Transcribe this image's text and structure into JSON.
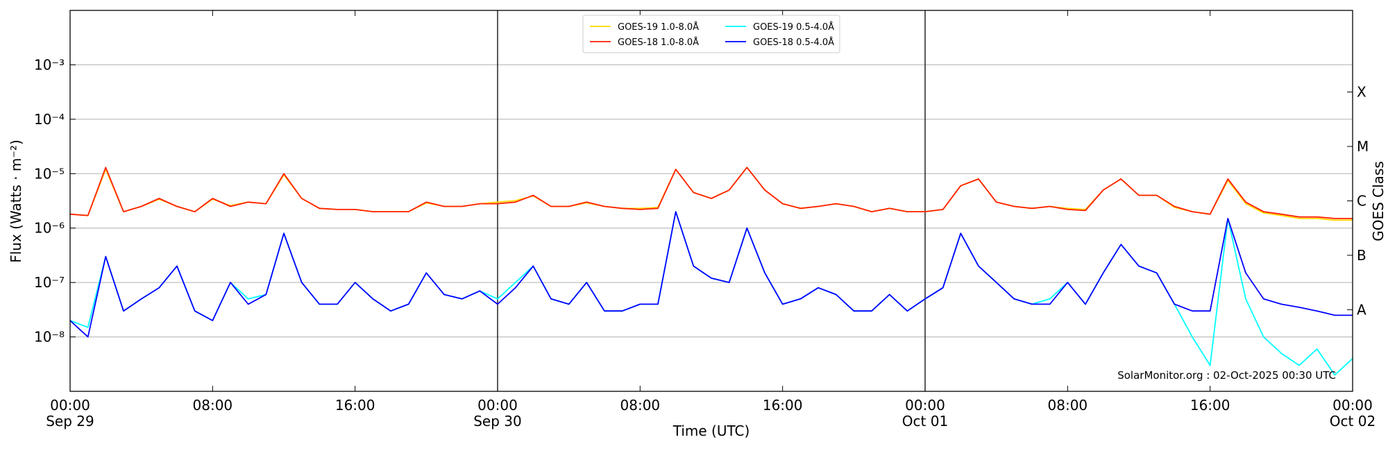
{
  "chart_data": {
    "type": "line",
    "x_label": "Time (UTC)",
    "y_label": "Flux (Watts · m⁻²)",
    "y2_label": "GOES Class",
    "watermark": "SolarMonitor.org : 02-Oct-2025 00:30 UTC",
    "log_y": true,
    "grid": true,
    "legend": "upper center",
    "xlim": [
      "2025-09-29T00:00Z",
      "2025-10-02T00:00Z"
    ],
    "ylim": [
      1e-09,
      0.01
    ],
    "yticks": [
      {
        "value": 1e-08,
        "label": "10⁻⁸"
      },
      {
        "value": 1e-07,
        "label": "10⁻⁷"
      },
      {
        "value": 1e-06,
        "label": "10⁻⁶"
      },
      {
        "value": 1e-05,
        "label": "10⁻⁵"
      },
      {
        "value": 0.0001,
        "label": "10⁻⁴"
      },
      {
        "value": 0.001,
        "label": "10⁻³"
      }
    ],
    "class_labels": [
      {
        "value": 1e-08,
        "label": "A"
      },
      {
        "value": 1e-07,
        "label": "B"
      },
      {
        "value": 1e-06,
        "label": "C"
      },
      {
        "value": 1e-05,
        "label": "M"
      },
      {
        "value": 0.0001,
        "label": "X"
      }
    ],
    "xticks": [
      {
        "value": "2025-09-29T00:00Z",
        "label": "00:00"
      },
      {
        "value": "2025-09-29T08:00Z",
        "label": "08:00"
      },
      {
        "value": "2025-09-29T16:00Z",
        "label": "16:00"
      },
      {
        "value": "2025-09-30T00:00Z",
        "label": "00:00"
      },
      {
        "value": "2025-09-30T08:00Z",
        "label": "08:00"
      },
      {
        "value": "2025-09-30T16:00Z",
        "label": "16:00"
      },
      {
        "value": "2025-10-01T00:00Z",
        "label": "00:00"
      },
      {
        "value": "2025-10-01T08:00Z",
        "label": "08:00"
      },
      {
        "value": "2025-10-01T16:00Z",
        "label": "16:00"
      },
      {
        "value": "2025-10-02T00:00Z",
        "label": "00:00"
      }
    ],
    "xtick_dates": [
      "Sep 29",
      null,
      null,
      "Sep 30",
      null,
      null,
      "Oct 01",
      null,
      null,
      "Oct 02"
    ],
    "day_separators": [
      "2025-09-30T00:00Z",
      "2025-10-01T00:00Z"
    ],
    "x": [
      "2025-09-29T00:00Z",
      "2025-09-29T01:00Z",
      "2025-09-29T02:00Z",
      "2025-09-29T03:00Z",
      "2025-09-29T04:00Z",
      "2025-09-29T05:00Z",
      "2025-09-29T06:00Z",
      "2025-09-29T07:00Z",
      "2025-09-29T08:00Z",
      "2025-09-29T09:00Z",
      "2025-09-29T10:00Z",
      "2025-09-29T11:00Z",
      "2025-09-29T12:00Z",
      "2025-09-29T13:00Z",
      "2025-09-29T14:00Z",
      "2025-09-29T15:00Z",
      "2025-09-29T16:00Z",
      "2025-09-29T17:00Z",
      "2025-09-29T18:00Z",
      "2025-09-29T19:00Z",
      "2025-09-29T20:00Z",
      "2025-09-29T21:00Z",
      "2025-09-29T22:00Z",
      "2025-09-29T23:00Z",
      "2025-09-30T00:00Z",
      "2025-09-30T01:00Z",
      "2025-09-30T02:00Z",
      "2025-09-30T03:00Z",
      "2025-09-30T04:00Z",
      "2025-09-30T05:00Z",
      "2025-09-30T06:00Z",
      "2025-09-30T07:00Z",
      "2025-09-30T08:00Z",
      "2025-09-30T09:00Z",
      "2025-09-30T10:00Z",
      "2025-09-30T11:00Z",
      "2025-09-30T12:00Z",
      "2025-09-30T13:00Z",
      "2025-09-30T14:00Z",
      "2025-09-30T15:00Z",
      "2025-09-30T16:00Z",
      "2025-09-30T17:00Z",
      "2025-09-30T18:00Z",
      "2025-09-30T19:00Z",
      "2025-09-30T20:00Z",
      "2025-09-30T21:00Z",
      "2025-09-30T22:00Z",
      "2025-09-30T23:00Z",
      "2025-10-01T00:00Z",
      "2025-10-01T01:00Z",
      "2025-10-01T02:00Z",
      "2025-10-01T03:00Z",
      "2025-10-01T04:00Z",
      "2025-10-01T05:00Z",
      "2025-10-01T06:00Z",
      "2025-10-01T07:00Z",
      "2025-10-01T08:00Z",
      "2025-10-01T09:00Z",
      "2025-10-01T10:00Z",
      "2025-10-01T11:00Z",
      "2025-10-01T12:00Z",
      "2025-10-01T13:00Z",
      "2025-10-01T14:00Z",
      "2025-10-01T15:00Z",
      "2025-10-01T16:00Z",
      "2025-10-01T17:00Z",
      "2025-10-01T18:00Z",
      "2025-10-01T19:00Z",
      "2025-10-01T20:00Z",
      "2025-10-01T21:00Z",
      "2025-10-01T22:00Z",
      "2025-10-01T23:00Z",
      "2025-10-02T00:00Z"
    ],
    "series": [
      {
        "name": "GOES-19 1.0-8.0Å",
        "color": "#ffd700",
        "values": [
          1.8e-06,
          1.7e-06,
          1.2e-05,
          2e-06,
          2.5e-06,
          3.4e-06,
          2.5e-06,
          2e-06,
          3.4e-06,
          2.6e-06,
          3e-06,
          2.8e-06,
          9.5e-06,
          3.5e-06,
          2.3e-06,
          2.2e-06,
          2.2e-06,
          2e-06,
          2e-06,
          2e-06,
          2.9e-06,
          2.5e-06,
          2.5e-06,
          2.8e-06,
          3e-06,
          3.2e-06,
          3.9e-06,
          2.5e-06,
          2.5e-06,
          2.9e-06,
          2.5e-06,
          2.3e-06,
          2.3e-06,
          2.4e-06,
          1.2e-05,
          4.5e-06,
          3.5e-06,
          5e-06,
          1.3e-05,
          5e-06,
          2.8e-06,
          2.3e-06,
          2.5e-06,
          2.8e-06,
          2.5e-06,
          2e-06,
          2.3e-06,
          2e-06,
          2e-06,
          2.2e-06,
          6e-06,
          8e-06,
          3e-06,
          2.5e-06,
          2.3e-06,
          2.5e-06,
          2.3e-06,
          2.2e-06,
          5e-06,
          8e-06,
          4e-06,
          4e-06,
          2.4e-06,
          2e-06,
          1.8e-06,
          7.5e-06,
          2.8e-06,
          1.9e-06,
          1.7e-06,
          1.5e-06,
          1.5e-06,
          1.4e-06,
          1.4e-06
        ]
      },
      {
        "name": "GOES-18 1.0-8.0Å",
        "color": "#ff2000",
        "values": [
          1.8e-06,
          1.7e-06,
          1.3e-05,
          2e-06,
          2.5e-06,
          3.5e-06,
          2.5e-06,
          2e-06,
          3.5e-06,
          2.5e-06,
          3e-06,
          2.8e-06,
          1e-05,
          3.5e-06,
          2.3e-06,
          2.2e-06,
          2.2e-06,
          2e-06,
          2e-06,
          2e-06,
          3e-06,
          2.5e-06,
          2.5e-06,
          2.8e-06,
          2.8e-06,
          3e-06,
          4e-06,
          2.5e-06,
          2.5e-06,
          3e-06,
          2.5e-06,
          2.3e-06,
          2.2e-06,
          2.3e-06,
          1.2e-05,
          4.5e-06,
          3.5e-06,
          5e-06,
          1.3e-05,
          5e-06,
          2.8e-06,
          2.3e-06,
          2.5e-06,
          2.8e-06,
          2.5e-06,
          2e-06,
          2.3e-06,
          2e-06,
          2e-06,
          2.2e-06,
          6e-06,
          8e-06,
          3e-06,
          2.5e-06,
          2.3e-06,
          2.5e-06,
          2.2e-06,
          2.1e-06,
          5e-06,
          8e-06,
          4e-06,
          4e-06,
          2.5e-06,
          2e-06,
          1.8e-06,
          8e-06,
          3e-06,
          2e-06,
          1.8e-06,
          1.6e-06,
          1.6e-06,
          1.5e-06,
          1.5e-06
        ]
      },
      {
        "name": "GOES-19 0.5-4.0Å",
        "color": "#00ffff",
        "values": [
          2e-08,
          1.5e-08,
          3e-07,
          3e-08,
          5e-08,
          8e-08,
          2e-07,
          3e-08,
          2e-08,
          1e-07,
          5e-08,
          6e-08,
          8e-07,
          1e-07,
          4e-08,
          4e-08,
          1e-07,
          5e-08,
          3e-08,
          4e-08,
          1.5e-07,
          6e-08,
          5e-08,
          7e-08,
          5e-08,
          1e-07,
          2e-07,
          5e-08,
          4e-08,
          1e-07,
          3e-08,
          3e-08,
          4e-08,
          4e-08,
          2e-06,
          2e-07,
          1.2e-07,
          1e-07,
          1e-06,
          1.5e-07,
          4e-08,
          5e-08,
          8e-08,
          6e-08,
          3e-08,
          3e-08,
          6e-08,
          3e-08,
          5e-08,
          8e-08,
          8e-07,
          2e-07,
          1e-07,
          5e-08,
          4e-08,
          5e-08,
          1e-07,
          4e-08,
          1.5e-07,
          5e-07,
          2e-07,
          1.5e-07,
          4e-08,
          1e-08,
          3e-09,
          1.5e-06,
          5e-08,
          1e-08,
          5e-09,
          3e-09,
          6e-09,
          2e-09,
          4e-09
        ]
      },
      {
        "name": "GOES-18 0.5-4.0Å",
        "color": "#0000ff",
        "values": [
          2e-08,
          1e-08,
          3e-07,
          3e-08,
          5e-08,
          8e-08,
          2e-07,
          3e-08,
          2e-08,
          1e-07,
          4e-08,
          6e-08,
          8e-07,
          1e-07,
          4e-08,
          4e-08,
          1e-07,
          5e-08,
          3e-08,
          4e-08,
          1.5e-07,
          6e-08,
          5e-08,
          7e-08,
          4e-08,
          8e-08,
          2e-07,
          5e-08,
          4e-08,
          1e-07,
          3e-08,
          3e-08,
          4e-08,
          4e-08,
          2e-06,
          2e-07,
          1.2e-07,
          1e-07,
          1e-06,
          1.5e-07,
          4e-08,
          5e-08,
          8e-08,
          6e-08,
          3e-08,
          3e-08,
          6e-08,
          3e-08,
          5e-08,
          8e-08,
          8e-07,
          2e-07,
          1e-07,
          5e-08,
          4e-08,
          4e-08,
          1e-07,
          4e-08,
          1.5e-07,
          5e-07,
          2e-07,
          1.5e-07,
          4e-08,
          3e-08,
          3e-08,
          1.5e-06,
          1.5e-07,
          5e-08,
          4e-08,
          3.5e-08,
          3e-08,
          2.5e-08,
          2.5e-08
        ]
      }
    ]
  }
}
